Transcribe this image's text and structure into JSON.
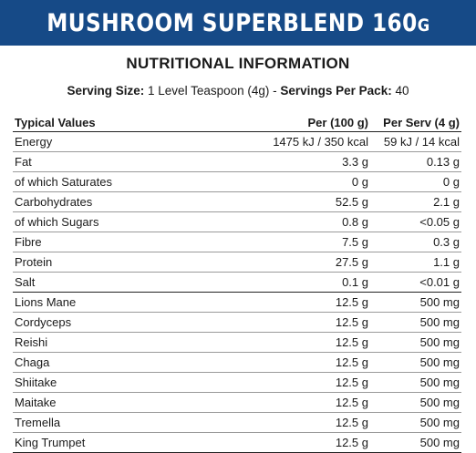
{
  "banner": {
    "title": "MUSHROOM SUPERBLEND 160",
    "suffix": "G"
  },
  "heading": "NUTRITIONAL INFORMATION",
  "serving": {
    "size_label": "Serving Size:",
    "size_value": " 1 Level Teaspoon (4g) - ",
    "per_pack_label": "Servings Per Pack:",
    "per_pack_value": " 40"
  },
  "table": {
    "headers": [
      "Typical Values",
      "Per (100 g)",
      "Per Serv (4 g)"
    ],
    "rows": [
      {
        "name": "Energy",
        "per100": "1475 kJ / 350 kcal",
        "perServ": "59 kJ / 14 kcal"
      },
      {
        "name": "Fat",
        "per100": "3.3 g",
        "perServ": "0.13 g"
      },
      {
        "name": "of which Saturates",
        "per100": "0 g",
        "perServ": "0 g"
      },
      {
        "name": "Carbohydrates",
        "per100": "52.5 g",
        "perServ": "2.1 g"
      },
      {
        "name": "of which Sugars",
        "per100": "0.8 g",
        "perServ": "<0.05 g"
      },
      {
        "name": "Fibre",
        "per100": "7.5 g",
        "perServ": "0.3 g"
      },
      {
        "name": "Protein",
        "per100": "27.5 g",
        "perServ": "1.1 g"
      },
      {
        "name": "Salt",
        "per100": "0.1 g",
        "perServ": "<0.01 g"
      },
      {
        "name": "Lions Mane",
        "per100": "12.5 g",
        "perServ": "500 mg"
      },
      {
        "name": "Cordyceps",
        "per100": "12.5 g",
        "perServ": "500 mg"
      },
      {
        "name": "Reishi",
        "per100": "12.5 g",
        "perServ": "500 mg"
      },
      {
        "name": "Chaga",
        "per100": "12.5 g",
        "perServ": "500 mg"
      },
      {
        "name": "Shiitake",
        "per100": "12.5 g",
        "perServ": "500 mg"
      },
      {
        "name": "Maitake",
        "per100": "12.5 g",
        "perServ": "500 mg"
      },
      {
        "name": "Tremella",
        "per100": "12.5 g",
        "perServ": "500 mg"
      },
      {
        "name": "King Trumpet",
        "per100": "12.5 g",
        "perServ": "500 mg"
      }
    ]
  }
}
